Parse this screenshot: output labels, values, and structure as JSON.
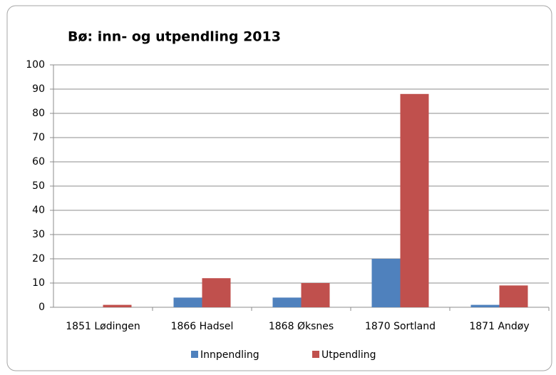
{
  "chart_data": {
    "type": "bar",
    "title": "Bø: inn- og utpendling 2013",
    "categories": [
      "1851 Lødingen",
      "1866 Hadsel",
      "1868 Øksnes",
      "1870 Sortland",
      "1871 Andøy"
    ],
    "series": [
      {
        "name": "Innpendling",
        "color": "#4f81bd",
        "values": [
          0,
          4,
          4,
          20,
          1
        ]
      },
      {
        "name": "Utpendling",
        "color": "#c0504d",
        "values": [
          1,
          12,
          10,
          88,
          9
        ]
      }
    ],
    "ylim": [
      0,
      100
    ],
    "yticks": [
      0,
      10,
      20,
      30,
      40,
      50,
      60,
      70,
      80,
      90,
      100
    ],
    "grid": true,
    "legend": "bottom"
  }
}
